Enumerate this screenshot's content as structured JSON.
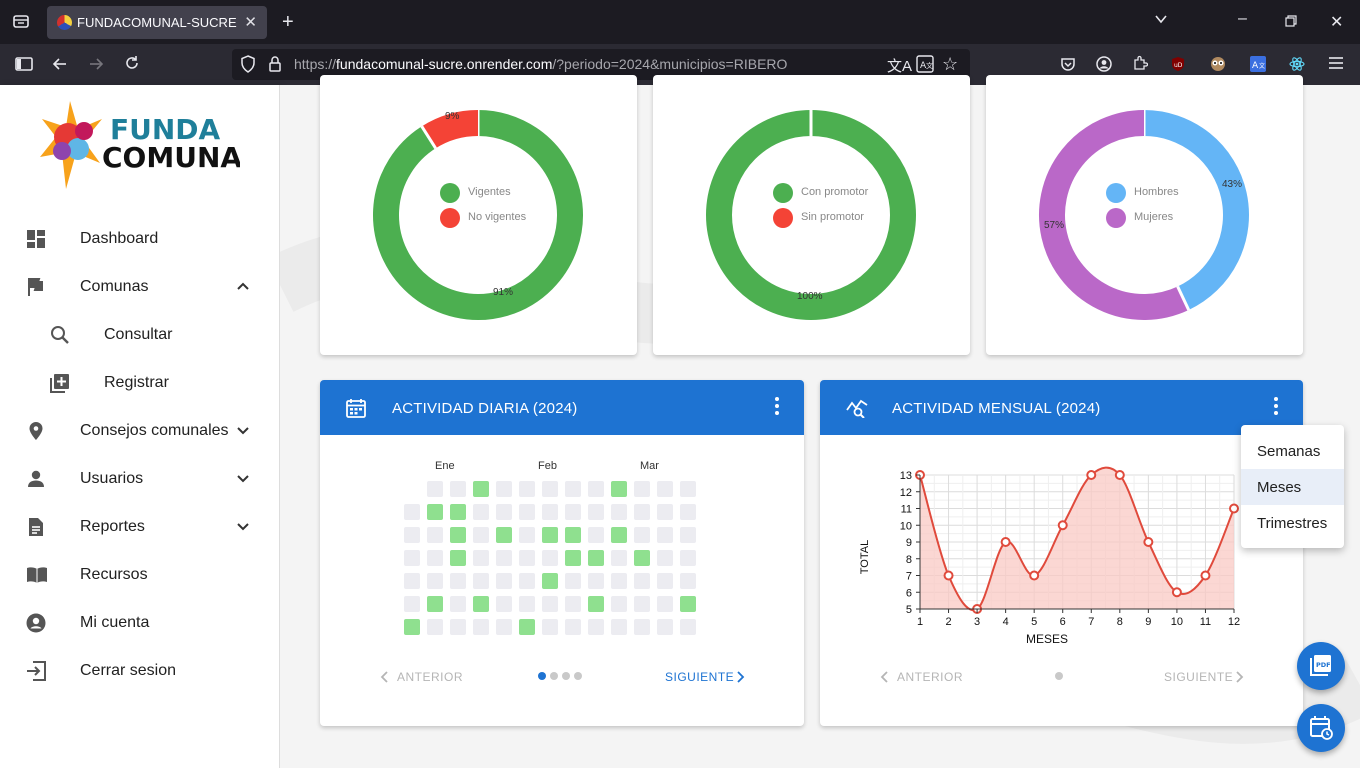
{
  "browser": {
    "tab_title": "FUNDACOMUNAL-SUCRE",
    "url_prefix": "https://",
    "url_domain": "fundacomunal-sucre.onrender.com",
    "url_path": "/?periodo=2024&municipios=RIBERO"
  },
  "logo": {
    "line1": "FUNDA",
    "line2": "COMUNAL"
  },
  "sidebar": {
    "items": [
      {
        "label": "Dashboard",
        "icon": "dashboard-icon"
      },
      {
        "label": "Comunas",
        "icon": "flag-icon"
      },
      {
        "label": "Consultar",
        "icon": "search-icon"
      },
      {
        "label": "Registrar",
        "icon": "add-box-icon"
      },
      {
        "label": "Consejos comunales",
        "icon": "location-pin-icon"
      },
      {
        "label": "Usuarios",
        "icon": "person-icon"
      },
      {
        "label": "Reportes",
        "icon": "document-icon"
      },
      {
        "label": "Recursos",
        "icon": "book-icon"
      },
      {
        "label": "Mi cuenta",
        "icon": "account-circle-icon"
      },
      {
        "label": "Cerrar sesion",
        "icon": "logout-icon"
      }
    ]
  },
  "donuts": [
    {
      "legend": [
        "Vigentes",
        "No vigentes"
      ],
      "colors": [
        "#4caf50",
        "#f44336"
      ],
      "values": [
        91,
        9
      ],
      "labels": [
        "91%",
        "9%"
      ]
    },
    {
      "legend": [
        "Con promotor",
        "Sin promotor"
      ],
      "colors": [
        "#4caf50",
        "#f44336"
      ],
      "values": [
        100,
        0
      ],
      "labels": [
        "100%"
      ]
    },
    {
      "legend": [
        "Hombres",
        "Mujeres"
      ],
      "colors": [
        "#64b5f6",
        "#ba68c8"
      ],
      "values": [
        43,
        57
      ],
      "labels": [
        "43%",
        "57%"
      ]
    }
  ],
  "daily": {
    "title": "ACTIVIDAD DIARIA (2024)",
    "months": [
      "Ene",
      "Feb",
      "Mar"
    ],
    "prev": "ANTERIOR",
    "next": "SIGUIENTE",
    "active_color": "#8fe08f",
    "empty_color": "#ececf1"
  },
  "monthly": {
    "title": "ACTIVIDAD MENSUAL (2024)",
    "prev": "ANTERIOR",
    "next": "SIGUIENTE"
  },
  "menu": {
    "items": [
      "Semanas",
      "Meses",
      "Trimestres"
    ],
    "selected": "Meses"
  },
  "chart_data": {
    "type": "area",
    "x": [
      1,
      2,
      3,
      4,
      5,
      6,
      7,
      8,
      9,
      10,
      11,
      12
    ],
    "values": [
      13,
      7,
      5,
      9,
      7,
      10,
      13,
      13,
      9,
      6,
      7,
      11
    ],
    "xlabel": "MESES",
    "ylabel": "TOTAL",
    "ylim": [
      5,
      13
    ],
    "yticks": [
      5,
      6,
      7,
      8,
      9,
      10,
      11,
      12,
      13
    ],
    "line_color": "#e04a3c",
    "fill_color": "#f9c9c4",
    "grid": true
  }
}
